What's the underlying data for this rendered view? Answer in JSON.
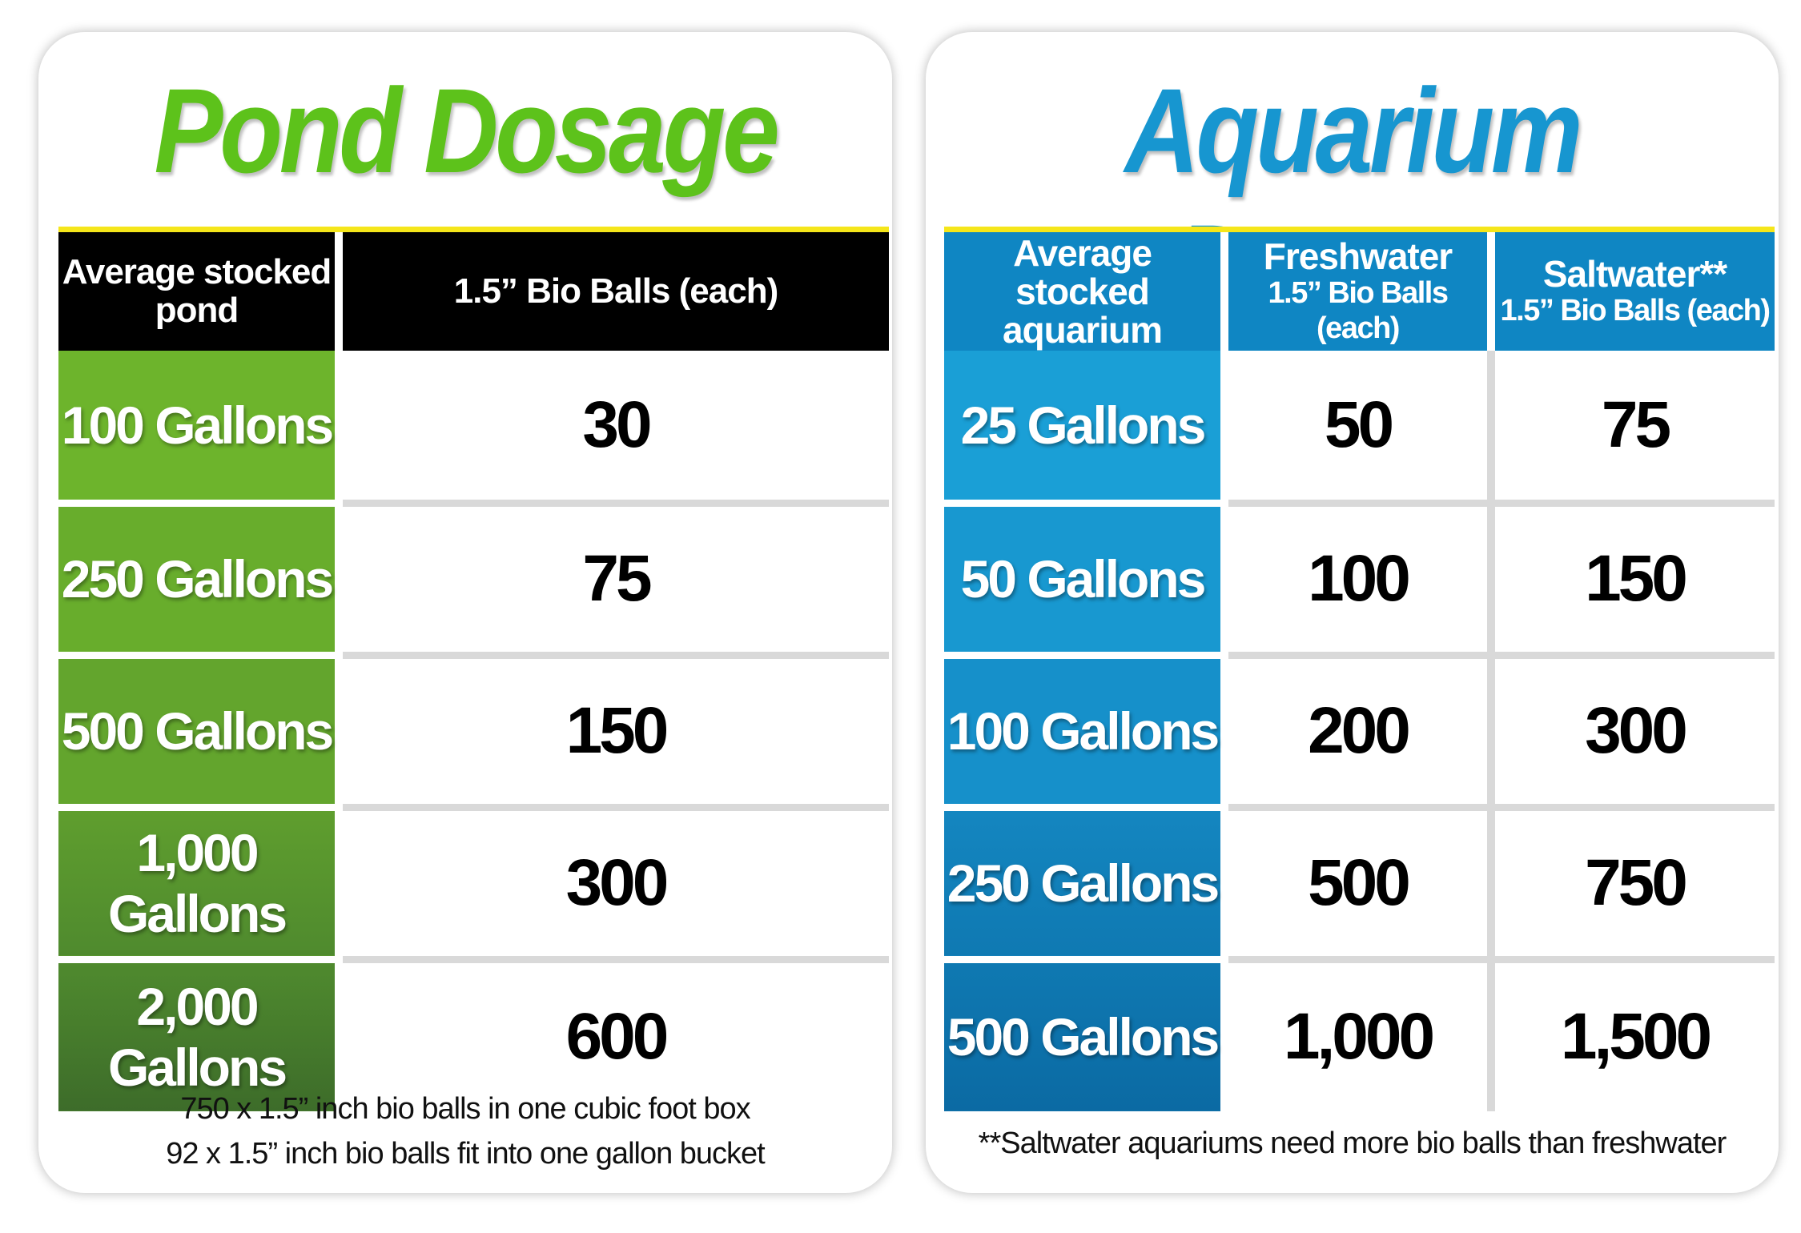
{
  "pond": {
    "title": "Pond Dosage",
    "headers": [
      "Average stocked pond",
      "1.5” Bio Balls (each)"
    ],
    "rows": [
      {
        "label": "100 Gallons",
        "value": "30"
      },
      {
        "label": "250 Gallons",
        "value": "75"
      },
      {
        "label": "500 Gallons",
        "value": "150"
      },
      {
        "label": "1,000 Gallons",
        "value": "300"
      },
      {
        "label": "2,000 Gallons",
        "value": "600"
      }
    ],
    "footnotes": [
      "750 x 1.5” inch bio balls in one cubic foot box",
      "92 x 1.5” inch bio balls fit into one gallon bucket"
    ]
  },
  "aquarium": {
    "title": "Aquarium Dosage",
    "headers": [
      {
        "main": "Average stocked",
        "sub": "aquarium"
      },
      {
        "main": "Freshwater",
        "sub": "1.5” Bio Balls (each)"
      },
      {
        "main": "Saltwater**",
        "sub": "1.5” Bio Balls (each)"
      }
    ],
    "rows": [
      {
        "label": "25 Gallons",
        "fresh": "50",
        "salt": "75"
      },
      {
        "label": "50 Gallons",
        "fresh": "100",
        "salt": "150"
      },
      {
        "label": "100 Gallons",
        "fresh": "200",
        "salt": "300"
      },
      {
        "label": "250 Gallons",
        "fresh": "500",
        "salt": "750"
      },
      {
        "label": "500 Gallons",
        "fresh": "1,000",
        "salt": "1,500"
      }
    ],
    "footnote": "**Saltwater aquariums need more bio balls than freshwater"
  },
  "colors": {
    "pond_title": "#5dc21b",
    "aquarium_title": "#1796d0",
    "pond_label_cells": "#6db42c",
    "aquarium_label_cells": "#1a9fd6",
    "aquarium_header": "#0f86c3",
    "pond_header": "#000000",
    "rule": "#f5e61a"
  }
}
